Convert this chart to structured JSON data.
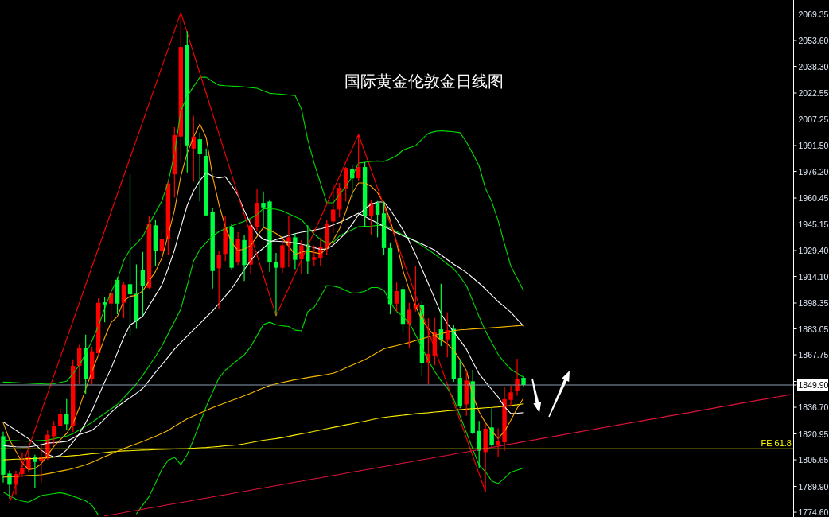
{
  "chart_data": {
    "type": "candlestick",
    "title": "国际黄金伦敦金日线图",
    "tick_labels": "y",
    "categories": [
      null,
      null,
      null,
      null,
      null,
      null,
      null,
      null,
      null,
      null,
      null,
      null,
      null,
      null,
      null,
      null,
      null,
      null,
      null,
      null,
      null,
      null,
      null,
      null,
      null,
      null,
      null,
      null,
      null,
      null,
      null,
      null,
      null,
      null,
      null,
      null,
      null,
      null,
      null,
      null,
      null,
      null,
      null,
      null,
      null,
      null,
      null,
      null,
      null,
      null,
      null,
      null,
      null,
      null,
      null,
      null,
      null,
      null,
      null,
      null,
      null,
      null,
      null,
      null,
      null,
      null,
      null,
      null,
      null,
      null,
      null,
      null,
      null,
      null,
      null,
      null,
      null,
      null,
      null,
      null,
      null,
      null,
      null,
      null,
      null,
      null,
      null,
      null,
      null,
      null,
      null,
      null,
      null,
      null,
      null,
      null,
      null,
      null,
      null,
      null,
      null,
      null,
      null,
      null,
      null,
      null,
      null,
      null,
      null,
      null,
      null,
      null,
      null,
      null,
      null,
      null,
      null,
      null,
      null,
      null,
      null,
      null,
      null,
      null,
      null
    ],
    "ohlc": [
      [
        1819.6,
        1822.3,
        1792.1,
        1796.8
      ],
      [
        1797.5,
        1799.2,
        1782.7,
        1790.9
      ],
      [
        1790.9,
        1799.2,
        1785.1,
        1797.2
      ],
      [
        1797.2,
        1810.2,
        1795.3,
        1800.8
      ],
      [
        1800.0,
        1811.0,
        1798.4,
        1807.1
      ],
      [
        1807.1,
        1808.6,
        1789.0,
        1804.4
      ],
      [
        1804.7,
        1814.1,
        1792.1,
        1807.1
      ],
      [
        1806.3,
        1823.5,
        1805.6,
        1820.4
      ],
      [
        1819.6,
        1828.6,
        1814.9,
        1825.9
      ],
      [
        1825.9,
        1836.1,
        1825.1,
        1832.9
      ],
      [
        1832.9,
        1841.5,
        1823.5,
        1826.7
      ],
      [
        1825.9,
        1865.1,
        1822.0,
        1861.2
      ],
      [
        1861.2,
        1873.7,
        1850.2,
        1871.8
      ],
      [
        1871.8,
        1879.7,
        1844.7,
        1853.3
      ],
      [
        1853.3,
        1872.5,
        1850.2,
        1869.8
      ],
      [
        1868.7,
        1901.2,
        1867.4,
        1898.5
      ],
      [
        1898.8,
        1901.6,
        1887.0,
        1897.5
      ],
      [
        1898.0,
        1912.1,
        1887.0,
        1904.0
      ],
      [
        1912.1,
        1913.7,
        1891.7,
        1898.0
      ],
      [
        1898.5,
        1910.6,
        1889.4,
        1909.3
      ],
      [
        1909.5,
        1974.5,
        1878.4,
        1903.5
      ],
      [
        1903.8,
        1921.2,
        1883.1,
        1887.8
      ],
      [
        1917.9,
        1928.6,
        1890.9,
        1908.5
      ],
      [
        1907.4,
        1949.8,
        1906.7,
        1945.0
      ],
      [
        1944.3,
        1947.7,
        1920.0,
        1929.4
      ],
      [
        1929.4,
        1941.9,
        1924.7,
        1936.4
      ],
      [
        1936.0,
        1970.2,
        1927.0,
        1968.9
      ],
      [
        1974.5,
        2002.3,
        1960.8,
        1997.6
      ],
      [
        1996.8,
        2070.1,
        1981.1,
        2049.8
      ],
      [
        2050.9,
        2059.1,
        1975.6,
        1991.6
      ],
      [
        1989.7,
        2009.0,
        1970.2,
        1996.8
      ],
      [
        1995.2,
        1999.2,
        1958.4,
        1986.6
      ],
      [
        1985.4,
        1989.7,
        1949.8,
        1950.2
      ],
      [
        1952.1,
        1954.5,
        1906.9,
        1917.3
      ],
      [
        1918.9,
        1929.4,
        1894.6,
        1926.6
      ],
      [
        1927.4,
        1949.8,
        1923.1,
        1942.7
      ],
      [
        1943.2,
        1945.4,
        1917.9,
        1919.2
      ],
      [
        1922.3,
        1940.3,
        1920.8,
        1936.0
      ],
      [
        1935.6,
        1938.5,
        1911.4,
        1920.8
      ],
      [
        1921.1,
        1948.2,
        1915.6,
        1944.3
      ],
      [
        1943.5,
        1965.8,
        1941.1,
        1957.6
      ],
      [
        1957.6,
        1964.3,
        1943.5,
        1954.9
      ],
      [
        1958.4,
        1959.6,
        1916.8,
        1922.7
      ],
      [
        1922.7,
        1928.0,
        1890.9,
        1919.2
      ],
      [
        1919.2,
        1936.4,
        1916.1,
        1932.5
      ],
      [
        1932.5,
        1949.8,
        1919.5,
        1937.2
      ],
      [
        1937.2,
        1939.6,
        1918.4,
        1923.9
      ],
      [
        1924.2,
        1935.6,
        1915.3,
        1932.5
      ],
      [
        1933.0,
        1944.3,
        1915.3,
        1923.1
      ],
      [
        1923.9,
        1932.5,
        1920.0,
        1925.5
      ],
      [
        1924.7,
        1937.2,
        1920.0,
        1931.7
      ],
      [
        1930.9,
        1947.4,
        1927.0,
        1945.5
      ],
      [
        1946.6,
        1968.6,
        1939.6,
        1953.7
      ],
      [
        1953.7,
        1969.4,
        1949.0,
        1966.5
      ],
      [
        1966.2,
        1978.8,
        1958.4,
        1978.3
      ],
      [
        1977.7,
        1980.1,
        1960.8,
        1972.1
      ],
      [
        1972.2,
        1997.9,
        1970.9,
        1978.8
      ],
      [
        1978.8,
        1981.6,
        1943.5,
        1949.8
      ],
      [
        1949.8,
        1959.6,
        1938.8,
        1957.6
      ],
      [
        1957.6,
        1958.7,
        1937.2,
        1950.6
      ],
      [
        1951.4,
        1958.4,
        1927.0,
        1930.9
      ],
      [
        1930.9,
        1934.1,
        1891.7,
        1897.7
      ],
      [
        1898.0,
        1911.0,
        1893.3,
        1905.4
      ],
      [
        1906.7,
        1908.2,
        1881.3,
        1886.0
      ],
      [
        1886.0,
        1898.5,
        1872.1,
        1894.4
      ],
      [
        1895.2,
        1920.0,
        1893.3,
        1897.5
      ],
      [
        1897.2,
        1899.6,
        1854.9,
        1862.7
      ],
      [
        1863.2,
        1889.4,
        1850.2,
        1868.2
      ],
      [
        1867.4,
        1889.7,
        1861.5,
        1881.1
      ],
      [
        1882.8,
        1909.8,
        1872.9,
        1876.8
      ],
      [
        1876.8,
        1892.8,
        1866.2,
        1882.3
      ],
      [
        1883.1,
        1885.5,
        1851.8,
        1853.3
      ],
      [
        1854.1,
        1865.1,
        1836.1,
        1837.6
      ],
      [
        1838.4,
        1858.0,
        1831.7,
        1852.6
      ],
      [
        1852.1,
        1858.8,
        1820.7,
        1821.2
      ],
      [
        1822.7,
        1828.6,
        1800.8,
        1811.0
      ],
      [
        1810.2,
        1826.7,
        1786.7,
        1824.0
      ],
      [
        1824.8,
        1836.1,
        1813.3,
        1814.4
      ],
      [
        1814.4,
        1824.3,
        1807.1,
        1816.5
      ],
      [
        1816.0,
        1848.9,
        1811.0,
        1841.5
      ],
      [
        1841.1,
        1849.4,
        1837.6,
        1845.5
      ],
      [
        1846.2,
        1865.4,
        1843.6,
        1853.6
      ],
      [
        1854.1,
        1855.2,
        1849.1,
        1849.9
      ],
      null,
      null,
      null,
      null,
      null,
      null,
      null,
      null,
      null,
      null,
      null,
      null,
      null,
      null,
      null,
      null,
      null,
      null,
      null,
      null,
      null,
      null,
      null,
      null,
      null,
      null,
      null,
      null,
      null,
      null,
      null,
      null,
      null,
      null,
      null,
      null,
      null,
      null,
      null,
      null,
      null,
      null
    ],
    "colors": [
      "#00ff40",
      "#00ff40",
      "#ff0000",
      "#ff0000",
      "#ff0000",
      "#00ff40",
      "#ff0000",
      "#ff0000",
      "#ff0000",
      "#ff0000",
      "#00ff40",
      "#ff0000",
      "#ff0000",
      "#00ff40",
      "#ff0000",
      "#ff0000",
      "#00ff40",
      "#ff0000",
      "#00ff40",
      "#ff0000",
      "#00ff40",
      "#00ff40",
      "#00ff40",
      "#ff0000",
      "#00ff40",
      "#ff0000",
      "#ff0000",
      "#ff0000",
      "#ff0000",
      "#00ff40",
      "#ff0000",
      "#00ff40",
      "#00ff40",
      "#00ff40",
      "#ff0000",
      "#ff0000",
      "#00ff40",
      "#ff0000",
      "#00ff40",
      "#ff0000",
      "#ff0000",
      "#00ff40",
      "#00ff40",
      "#00ff40",
      "#ff0000",
      "#ff0000",
      "#00ff40",
      "#ff0000",
      "#00ff40",
      "#ff0000",
      "#ff0000",
      "#ff0000",
      "#ff0000",
      "#ff0000",
      "#ff0000",
      "#00ff40",
      "#ff0000",
      "#00ff40",
      "#ff0000",
      "#00ff40",
      "#00ff40",
      "#00ff40",
      "#ff0000",
      "#00ff40",
      "#ff0000",
      "#ff0000",
      "#00ff40",
      "#ff0000",
      "#ff0000",
      "#00ff40",
      "#ff0000",
      "#00ff40",
      "#00ff40",
      "#ff0000",
      "#00ff40",
      "#00ff40",
      "#ff0000",
      "#00ff40",
      "#ff0000",
      "#ff0000",
      "#ff0000",
      "#ff0000",
      "#00ff40",
      null,
      null,
      null,
      null,
      null,
      null,
      null,
      null,
      null,
      null,
      null,
      null,
      null,
      null,
      null,
      null,
      null,
      null,
      null,
      null,
      null,
      null,
      null,
      null,
      null,
      null,
      null,
      null,
      null,
      null,
      null,
      null,
      null,
      null,
      null,
      null,
      null,
      null,
      null,
      null,
      null,
      null
    ],
    "series": [
      {
        "type": "line",
        "color": "#00dc00",
        "values": [
          1851.6,
          1851.5,
          1851.3,
          1851.1,
          1851.0,
          1850.8,
          1850.6,
          1850.4,
          1850.6,
          1851.4,
          1852.1,
          1856.5,
          1861.6,
          1868.5,
          1876.0,
          1884.7,
          1895.1,
          1905.0,
          1912.2,
          1923.5,
          1930.0,
          1933.5,
          1937.7,
          1945.1,
          1952.0,
          1958.6,
          1969.9,
          1986.5,
          2012.2,
          2020.6,
          2026.4,
          2031.9,
          2031.9,
          2029.4,
          2027.2,
          2026.9,
          2026.7,
          2026.5,
          2026.2,
          2025.8,
          2025.4,
          2023.9,
          2022.4,
          2022.1,
          2021.8,
          2021.4,
          2021.1,
          2013.2,
          1994.9,
          1981.2,
          1969.4,
          1957.6,
          1957.6,
          1962.5,
          1967.4,
          1973.2,
          1981.1,
          1981.6,
          1982.1,
          1982.4,
          1982.1,
          1983.6,
          1985.5,
          1988.8,
          1990.2,
          1991.4,
          1995.2,
          1998.7,
          1999.8,
          2000.2,
          1999.9,
          1999.6,
          1999.1,
          1993.6,
          1986.8,
          1979.5,
          1966.1,
          1958.3,
          1947.1,
          1933.3,
          1920.2,
          1913.1,
          1905.8,
          null,
          null,
          null,
          null,
          null,
          null,
          null,
          null,
          null,
          null,
          null,
          null,
          null,
          null,
          null,
          null,
          null,
          null,
          null,
          null,
          null,
          null,
          null,
          null,
          null,
          null,
          null,
          null,
          null,
          null,
          null,
          null,
          null,
          null,
          null,
          null,
          null,
          null,
          null,
          null,
          null,
          null
        ]
      },
      {
        "type": "line",
        "color": "#00dc00",
        "values": [
          1817.3,
          1817.1,
          1816.9,
          1816.7,
          1816.6,
          1816.8,
          1817.1,
          1817.3,
          1818.1,
          1818.9,
          1819.7,
          1821.1,
          1823.3,
          1825.5,
          1827.8,
          1830.5,
          1833.1,
          1835.7,
          1838.4,
          1842.3,
          1846.4,
          1850.5,
          1855.6,
          1861.2,
          1866.7,
          1872.8,
          1880.1,
          1887.4,
          1894.8,
          1908.6,
          1923.2,
          1930.0,
          1934.2,
          1937.9,
          1940.6,
          1942.4,
          1944.0,
          1945.3,
          1946.7,
          1948.4,
          1950.7,
          1954.3,
          1954.1,
          1953.9,
          1952.9,
          1951.2,
          1949.4,
          1947.7,
          1943.5,
          1939.1,
          1936.0,
          1933.8,
          1934.2,
          1938.1,
          1939.9,
          1941.7,
          1943.5,
          1943.7,
          1943.9,
          1944.2,
          1944.4,
          1942.7,
          1940.7,
          1938.6,
          1936.8,
          1934.8,
          1932.3,
          1929.8,
          1927.3,
          1924.4,
          1921.4,
          1918.5,
          1914.0,
          1908.7,
          1899.7,
          1890.3,
          1881.9,
          1875.0,
          1868.0,
          1863.1,
          1859.1,
          1856.8,
          1854.5,
          null,
          null,
          null,
          null,
          null,
          null,
          null,
          null,
          null,
          null,
          null,
          null,
          null,
          null,
          null,
          null,
          null,
          null,
          null,
          null,
          null,
          null,
          null,
          null,
          null,
          null,
          null,
          null,
          null,
          null,
          null,
          null,
          null,
          null,
          null,
          null,
          null,
          null,
          null,
          null,
          null,
          null
        ]
      },
      {
        "type": "line",
        "color": "#00dc00",
        "values": [
          1786.6,
          1784.4,
          1782.4,
          1781.2,
          1780.6,
          1782.5,
          1784.5,
          1785.1,
          1785.7,
          1786.2,
          1785.4,
          1784.1,
          1782.7,
          1781.3,
          1778.7,
          1772.9,
          null,
          null,
          null,
          null,
          null,
          1773.7,
          1778.9,
          1784.0,
          1791.8,
          1799.9,
          1805.4,
          1807.1,
          1802.8,
          1808.7,
          1817.6,
          1827.4,
          1837.1,
          1845.7,
          1854.0,
          1858.6,
          1861.7,
          1864.7,
          1867.7,
          1872.5,
          1879.0,
          1885.6,
          1887.0,
          1885.5,
          1884.9,
          1884.5,
          1882.3,
          1881.9,
          1893.2,
          1895.8,
          1902.0,
          1908.7,
          1908.4,
          1907.5,
          1905.8,
          1904.2,
          1904.5,
          1905.3,
          1907.5,
          1907.5,
          1906.0,
          1898.9,
          1893.4,
          1890.4,
          1886.6,
          1879.5,
          1872.1,
          1864.2,
          1857.9,
          1852.4,
          1848.1,
          1841.6,
          1831.6,
          1821.8,
          1812.1,
          1802.4,
          1798.6,
          1793.1,
          1791.6,
          1794.7,
          1798.3,
          1799.6,
          1800.7,
          null,
          null,
          null,
          null,
          null,
          null,
          null,
          null,
          null,
          null,
          null,
          null,
          null,
          null,
          null,
          null,
          null,
          null,
          null,
          null,
          null,
          null,
          null,
          null,
          null,
          null,
          null,
          null,
          null,
          null,
          null,
          null,
          null,
          null,
          null,
          null,
          null,
          null,
          null,
          null,
          null,
          null
        ]
      },
      {
        "type": "line",
        "color": "#ffee00",
        "values": [
          1805.6,
          1805.8,
          1806.0,
          1806.1,
          1806.3,
          1806.4,
          1806.6,
          1806.9,
          1807.2,
          1807.5,
          1807.8,
          1808.1,
          1808.4,
          1808.8,
          1809.2,
          1809.5,
          1809.9,
          1810.3,
          1810.6,
          1810.9,
          1811.0,
          1811.2,
          1811.4,
          1811.5,
          1811.7,
          1811.8,
          1811.9,
          1812.0,
          1812.1,
          1812.2,
          1812.5,
          1812.7,
          1812.9,
          1813.2,
          1813.5,
          1813.9,
          1814.2,
          1814.5,
          1815.1,
          1815.8,
          1816.5,
          1817.2,
          1817.7,
          1818.2,
          1818.8,
          1819.5,
          1820.3,
          1821.0,
          1821.7,
          1822.5,
          1823.2,
          1824.0,
          1824.8,
          1825.5,
          1826.3,
          1827.0,
          1827.8,
          1828.5,
          1829.3,
          1830.1,
          1830.7,
          1831.2,
          1831.6,
          1832.0,
          1832.4,
          1832.9,
          1833.2,
          1833.5,
          1833.9,
          1834.2,
          1834.6,
          1834.9,
          1835.3,
          1835.6,
          1835.9,
          1836.1,
          1836.4,
          1836.6,
          1836.9,
          1837.3,
          1837.8,
          1838.2,
          1838.7,
          null,
          null,
          null,
          null,
          null,
          null,
          null,
          null,
          null,
          null,
          null,
          null,
          null,
          null,
          null,
          null,
          null,
          null,
          null,
          null,
          null,
          null,
          null,
          null,
          null,
          null,
          null,
          null,
          null,
          null,
          null,
          null,
          null,
          null,
          null,
          null,
          null,
          null,
          null,
          null,
          null,
          null
        ]
      },
      {
        "type": "line",
        "color": "#f5b800",
        "values": [
          1795.4,
          1795.6,
          1795.8,
          1796.0,
          1796.3,
          1796.5,
          1796.7,
          1797.4,
          1798.1,
          1798.9,
          1799.6,
          1800.5,
          1801.6,
          1802.7,
          1804.1,
          1805.8,
          1807.5,
          1809.1,
          1810.7,
          1812.2,
          1813.7,
          1815.1,
          1816.5,
          1818.0,
          1819.6,
          1821.2,
          1823.0,
          1825.4,
          1827.7,
          1829.9,
          1831.6,
          1833.2,
          1834.9,
          1836.5,
          1837.9,
          1839.3,
          1840.7,
          1842.0,
          1843.5,
          1845.0,
          1846.6,
          1848.1,
          1849.6,
          1850.5,
          1851.4,
          1852.2,
          1853.0,
          1853.6,
          1854.3,
          1854.9,
          1855.5,
          1856.1,
          1856.8,
          1858.3,
          1860.0,
          1861.7,
          1863.2,
          1864.9,
          1867.0,
          1869.2,
          1871.3,
          1872.3,
          1873.2,
          1874.1,
          1875.0,
          1876.1,
          1877.2,
          1878.4,
          1879.3,
          1880.2,
          1881.1,
          1882.0,
          1882.5,
          1882.7,
          1883.0,
          1883.2,
          1883.4,
          1883.7,
          1884.0,
          1884.3,
          1884.6,
          1884.9,
          1885.2,
          null,
          null,
          null,
          null,
          null,
          null,
          null,
          null,
          null,
          null,
          null,
          null,
          null,
          null,
          null,
          null,
          null,
          null,
          null,
          null,
          null,
          null,
          null,
          null,
          null,
          null,
          null,
          null,
          null,
          null,
          null,
          null,
          null,
          null,
          null,
          null,
          null,
          null,
          null,
          null,
          null,
          null
        ]
      },
      {
        "type": "line",
        "color": "#ffffff",
        "values": [
          1814.0,
          1813.6,
          1813.3,
          1813.2,
          1813.2,
          1813.8,
          1814.6,
          1815.5,
          1815.8,
          1816.1,
          1816.5,
          1818.5,
          1820.5,
          1821.8,
          1823.1,
          1826.1,
          1829.8,
          1833.6,
          1837.0,
          1839.8,
          1842.3,
          1845.0,
          1847.9,
          1852.5,
          1857.4,
          1861.8,
          1866.4,
          1871.1,
          1875.0,
          1878.8,
          1882.5,
          1886.2,
          1890.0,
          1893.7,
          1898.0,
          1902.4,
          1906.8,
          1912.4,
          1918.1,
          1923.4,
          1927.9,
          1930.8,
          1934.3,
          1935.9,
          1937.1,
          1938.2,
          1939.4,
          1940.2,
          1940.8,
          1941.5,
          1942.2,
          1943.2,
          1944.6,
          1946.1,
          1947.7,
          1949.6,
          1951.5,
          1949.5,
          1947.5,
          1945.6,
          1943.7,
          1941.8,
          1939.9,
          1938.1,
          1936.5,
          1935.0,
          1933.3,
          1931.5,
          1929.6,
          1926.8,
          1924.0,
          1921.3,
          1918.9,
          1916.4,
          1913.3,
          1910.1,
          1906.7,
          1902.9,
          1899.2,
          1896.2,
          1892.9,
          1888.8,
          1884.8,
          null,
          null,
          null,
          null,
          null,
          null,
          null,
          null,
          null,
          null,
          null,
          null,
          null,
          null,
          null,
          null,
          null,
          null,
          null,
          null,
          null,
          null,
          null,
          null,
          null,
          null,
          null,
          null,
          null,
          null,
          null,
          null,
          null,
          null,
          null,
          null,
          null,
          null,
          null,
          null,
          null,
          null
        ]
      },
      {
        "type": "line",
        "color": "#ffffff",
        "values": [
          1828.0,
          1825.6,
          1823.1,
          1820.6,
          1818.1,
          1814.9,
          1811.4,
          1808.8,
          1807.3,
          1808.2,
          1811.5,
          1816.1,
          1821.1,
          1827.5,
          1834.6,
          1843.3,
          1851.7,
          1859.6,
          1869.0,
          1878.1,
          1885.4,
          1887.8,
          1890.6,
          1896.8,
          1902.9,
          1909.0,
          1918.8,
          1929.7,
          1943.1,
          1956.1,
          1964.7,
          1970.8,
          1975.5,
          1973.3,
          1972.4,
          1973.1,
          1968.0,
          1962.1,
          1953.0,
          1945.2,
          1939.4,
          1936.0,
          1935.0,
          1934.9,
          1934.7,
          1934.4,
          1933.8,
          1933.2,
          1932.2,
          1931.1,
          1930.1,
          1930.3,
          1932.6,
          1936.1,
          1939.9,
          1945.0,
          1950.6,
          1954.1,
          1956.8,
          1958.1,
          1958.1,
          1953.5,
          1947.9,
          1941.7,
          1934.8,
          1927.0,
          1918.5,
          1909.9,
          1901.0,
          1892.1,
          1886.1,
          1881.4,
          1876.3,
          1871.1,
          1863.5,
          1856.5,
          1851.7,
          1847.2,
          1842.8,
          1837.0,
          1833.0,
          1833.2,
          1833.5,
          null,
          null,
          null,
          null,
          null,
          null,
          null,
          null,
          null,
          null,
          null,
          null,
          null,
          null,
          null,
          null,
          null,
          null,
          null,
          null,
          null,
          null,
          null,
          null,
          null,
          null,
          null,
          null,
          null,
          null,
          null,
          null,
          null,
          null,
          null,
          null,
          null,
          null,
          null,
          null,
          null,
          null
        ]
      },
      {
        "type": "line",
        "color": "#ffa500",
        "values": [
          1827.6,
          1817.4,
          1810.7,
          1804.0,
          1799.8,
          1800.5,
          1803.3,
          1808.4,
          1813.6,
          1817.5,
          1821.2,
          1827.1,
          1836.5,
          1847.6,
          1857.9,
          1867.6,
          1877.9,
          1886.8,
          1890.4,
          1899.6,
          1902.3,
          1902.9,
          1905.6,
          1911.4,
          1917.0,
          1924.9,
          1938.4,
          1953.2,
          1973.5,
          1987.0,
          1996.6,
          2004.2,
          1996.2,
          1973.3,
          1956.7,
          1943.6,
          1934.1,
          1929.5,
          1930.2,
          1932.4,
          1937.7,
          1943.0,
          1941.4,
          1939.5,
          1936.9,
          1931.9,
          1927.0,
          1928.5,
          1929.1,
          1928.3,
          1927.5,
          1930.8,
          1935.5,
          1942.2,
          1952.4,
          1963.2,
          1969.4,
          1969.4,
          1967.4,
          1963.6,
          1957.3,
          1947.3,
          1934.0,
          1917.6,
          1906.2,
          1896.4,
          1888.5,
          1883.2,
          1879.0,
          1876.7,
          1874.2,
          1870.4,
          1864.8,
          1858.5,
          1843.8,
          1834.0,
          1827.6,
          1822.6,
          1818.3,
          1822.4,
          1829.1,
          1836.1,
          1842.1,
          null,
          null,
          null,
          null,
          null,
          null,
          null,
          null,
          null,
          null,
          null,
          null,
          null,
          null,
          null,
          null,
          null,
          null,
          null,
          null,
          null,
          null,
          null,
          null,
          null,
          null,
          null,
          null,
          null,
          null,
          null,
          null,
          null,
          null,
          null,
          null,
          null,
          null,
          null,
          null,
          null,
          null
        ]
      },
      {
        "type": "line",
        "color": "#ff0000",
        "values": [
          null,
          1780.4,
          1791.1,
          1801.9,
          1812.6,
          1823.3,
          1834.1,
          1844.8,
          1855.5,
          1866.2,
          1877.0,
          1887.7,
          1898.4,
          1909.2,
          1919.9,
          1930.6,
          1941.3,
          1952.1,
          1962.8,
          1973.5,
          1984.3,
          1995.0,
          2005.7,
          2016.5,
          2027.2,
          2037.9,
          2048.6,
          2059.4,
          2070.1,
          2058.1,
          2046.2,
          2034.2,
          2022.3,
          2010.3,
          1998.4,
          1986.4,
          1974.5,
          1962.5,
          1950.6,
          1938.6,
          1926.7,
          1914.7,
          1902.8,
          1890.8,
          1899.1,
          1907.3,
          1915.6,
          1923.8,
          1932.1,
          1940.3,
          1948.6,
          1956.8,
          1965.1,
          1973.3,
          1981.6,
          1989.8,
          1998.1,
          1987.5,
          1977.0,
          1966.4,
          1955.8,
          1945.3,
          1934.7,
          1924.1,
          1913.6,
          1903.0,
          1892.5,
          1881.9,
          1871.3,
          1860.8,
          1850.2,
          1839.6,
          1829.1,
          1818.5,
          1807.9,
          1797.4,
          1786.8,
          null,
          null,
          null,
          null,
          null,
          null,
          null,
          null,
          null,
          null,
          null,
          null,
          null,
          null,
          null,
          null,
          null,
          null,
          null,
          null,
          null,
          null,
          null,
          null,
          null,
          null,
          null,
          null,
          null,
          null,
          null,
          null,
          null,
          null,
          null,
          null,
          null,
          null,
          null,
          null,
          null,
          null,
          null,
          null,
          null,
          null,
          null,
          null
        ]
      },
      {
        "type": "line",
        "color": "#dc143c",
        "values": [
          null,
          null,
          null,
          null,
          null,
          null,
          null,
          null,
          null,
          null,
          null,
          null,
          null,
          null,
          null,
          null,
          1772.4,
          1773.1,
          1773.7,
          1774.4,
          1775.1,
          1775.7,
          1776.4,
          1777.1,
          1777.7,
          1778.4,
          1779.1,
          1779.7,
          1780.4,
          1781.0,
          1781.7,
          1782.4,
          1783.0,
          1783.7,
          1784.4,
          1785.0,
          1785.7,
          1786.4,
          1787.0,
          1787.7,
          1788.4,
          1789.0,
          1789.7,
          1790.4,
          1791.0,
          1791.7,
          1792.4,
          1793.0,
          1793.7,
          1794.4,
          1795.0,
          1795.7,
          1796.4,
          1797.0,
          1797.7,
          1798.4,
          1799.0,
          1799.7,
          1800.3,
          1801.0,
          1801.7,
          1802.3,
          1803.0,
          1803.7,
          1804.3,
          1805.0,
          1805.7,
          1806.3,
          1807.0,
          1807.7,
          1808.3,
          1809.0,
          1809.7,
          1810.3,
          1811.0,
          1811.7,
          1812.3,
          1813.0,
          1813.6,
          1814.3,
          1815.0,
          1815.6,
          1816.3,
          1817.0,
          1817.6,
          1818.3,
          1819.0,
          1819.6,
          1820.3,
          1821.0,
          1821.6,
          1822.3,
          1823.0,
          1823.6,
          1824.3,
          1825.0,
          1825.6,
          1826.3,
          1827.0,
          1827.6,
          1828.2,
          1828.9,
          1829.6,
          1830.2,
          1830.9,
          1831.6,
          1832.2,
          1832.9,
          1833.5,
          1834.2,
          1834.9,
          1835.5,
          1836.2,
          1836.9,
          1837.5,
          1838.2,
          1838.9,
          1839.5,
          1840.2,
          1840.9,
          1841.5,
          1842.2,
          1842.8,
          1843.5,
          1844.2
        ]
      }
    ],
    "ylim": [
      1771.8,
      2077.6
    ],
    "yticks": [
      {
        "value": 1774.6,
        "label": "1774.60"
      },
      {
        "value": 1789.9,
        "label": "1789.90"
      },
      1805.65,
      1820.95,
      {
        "value": 1836.7,
        "label": "1836.70"
      },
      {
        "value": 1849.9,
        "label": "1849.90"
      },
      {
        "value": 1852.0,
        "label": null
      },
      1867.75,
      1883.05,
      1898.35,
      {
        "value": 1914.1,
        "label": "1914.10"
      },
      {
        "value": 1929.4,
        "label": "1929.40"
      },
      1945.15,
      1960.45,
      {
        "value": 1976.2,
        "label": "1976.20"
      },
      {
        "value": 1991.5,
        "label": "1991.50"
      },
      2007.25,
      2022.55,
      {
        "value": 2038.3,
        "label": "2038.30"
      },
      {
        "value": 2053.6,
        "label": "2053.60"
      },
      2069.35
    ],
    "ref_lines": [
      {
        "axis": "y",
        "value": 1812.1,
        "label": "FE 61.8",
        "color": "#ffff00"
      },
      {
        "axis": "y",
        "value": 1849.9,
        "color": "#8c9cb4"
      }
    ]
  }
}
